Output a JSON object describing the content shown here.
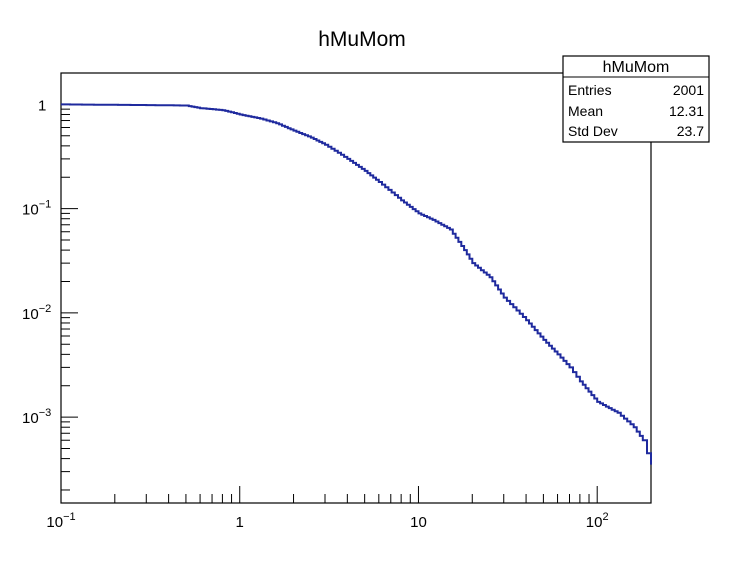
{
  "chart_data": {
    "type": "line",
    "title": "hMuMom",
    "xlabel": "",
    "ylabel": "",
    "x_scale": "log",
    "y_scale": "log",
    "xlim": [
      0.1,
      200
    ],
    "ylim": [
      0.00015,
      2
    ],
    "grid": false,
    "line_color": "#1f2a9e",
    "x_ticks": [
      {
        "value": 0.1,
        "base": "10",
        "exp": "−1"
      },
      {
        "value": 1,
        "base": "1",
        "exp": ""
      },
      {
        "value": 10,
        "base": "10",
        "exp": ""
      },
      {
        "value": 100,
        "base": "10",
        "exp": "2"
      }
    ],
    "y_ticks": [
      {
        "value": 1,
        "base": "1",
        "exp": ""
      },
      {
        "value": 0.1,
        "base": "10",
        "exp": "−1"
      },
      {
        "value": 0.01,
        "base": "10",
        "exp": "−2"
      },
      {
        "value": 0.001,
        "base": "10",
        "exp": "−3"
      }
    ],
    "points": [
      [
        0.1,
        1.0
      ],
      [
        0.2,
        0.99
      ],
      [
        0.3,
        0.985
      ],
      [
        0.5,
        0.975
      ],
      [
        0.6,
        0.92
      ],
      [
        0.8,
        0.88
      ],
      [
        1.0,
        0.8
      ],
      [
        1.3,
        0.73
      ],
      [
        1.6,
        0.66
      ],
      [
        2.0,
        0.56
      ],
      [
        2.5,
        0.48
      ],
      [
        3.0,
        0.41
      ],
      [
        4.0,
        0.3
      ],
      [
        5.0,
        0.23
      ],
      [
        6.0,
        0.18
      ],
      [
        8.0,
        0.12
      ],
      [
        10.0,
        0.09
      ],
      [
        12.0,
        0.078
      ],
      [
        15.0,
        0.063
      ],
      [
        18.0,
        0.04
      ],
      [
        20.0,
        0.03
      ],
      [
        25.0,
        0.022
      ],
      [
        30.0,
        0.014
      ],
      [
        40.0,
        0.0085
      ],
      [
        50.0,
        0.0055
      ],
      [
        60.0,
        0.004
      ],
      [
        70.0,
        0.003
      ],
      [
        80.0,
        0.0022
      ],
      [
        100.0,
        0.0014
      ],
      [
        130.0,
        0.0011
      ],
      [
        160.0,
        0.0008
      ],
      [
        180.0,
        0.0006
      ],
      [
        190.0,
        0.00045
      ],
      [
        200.0,
        0.00035
      ]
    ],
    "stats_box": {
      "title": "hMuMom",
      "rows": [
        {
          "label": "Entries",
          "value": "2001"
        },
        {
          "label": "Mean",
          "value": "12.31"
        },
        {
          "label": "Std Dev",
          "value": "23.7"
        }
      ]
    }
  }
}
